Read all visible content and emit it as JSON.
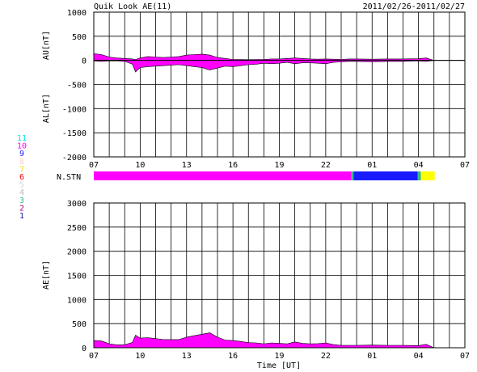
{
  "header": {
    "title": "Quik Look AE(11)",
    "date_range": "2011/02/26-2011/02/27"
  },
  "legend": {
    "items": [
      {
        "label": "11",
        "color": "#00e5e5"
      },
      {
        "label": "10",
        "color": "#ff00ff"
      },
      {
        "label": "9",
        "color": "#1a1aff"
      },
      {
        "label": "8",
        "color": "#ffd0d0"
      },
      {
        "label": "7",
        "color": "#e6e600"
      },
      {
        "label": "6",
        "color": "#ff0000"
      },
      {
        "label": "5",
        "color": "#d8d8d8"
      },
      {
        "label": "4",
        "color": "#bbbbbb"
      },
      {
        "label": "3",
        "color": "#33bb88"
      },
      {
        "label": "2",
        "color": "#b0007f"
      },
      {
        "label": "1",
        "color": "#1a1a99"
      }
    ]
  },
  "chart_data": [
    {
      "type": "area",
      "ylabel_upper": "AU[nT]",
      "ylabel_lower": "AL[nT]",
      "ylim": [
        -2000,
        1000
      ],
      "yticks": [
        "1000",
        "500",
        "0",
        "-500",
        "-1000",
        "-1500",
        "-2000"
      ],
      "xticks": [
        "07",
        "10",
        "13",
        "16",
        "19",
        "22",
        "01",
        "04",
        "07"
      ],
      "grid": true,
      "au": {
        "x": [
          7.0,
          7.5,
          8.0,
          8.5,
          9.0,
          9.5,
          9.7,
          10.0,
          10.5,
          11.0,
          11.5,
          12.0,
          12.5,
          13.0,
          13.5,
          14.0,
          14.5,
          15.0,
          15.5,
          16.0,
          16.5,
          17.0,
          17.5,
          18.0,
          18.5,
          19.0,
          19.5,
          20.0,
          20.5,
          21.0,
          21.5,
          22.0,
          22.5,
          23.0,
          23.5,
          24.0,
          25.0,
          26.0,
          27.0,
          28.0,
          28.5,
          29.0
        ],
        "y": [
          140,
          120,
          70,
          50,
          40,
          30,
          20,
          50,
          80,
          70,
          60,
          70,
          80,
          110,
          120,
          130,
          110,
          60,
          40,
          20,
          20,
          15,
          20,
          20,
          30,
          30,
          40,
          50,
          40,
          30,
          25,
          30,
          25,
          20,
          30,
          30,
          25,
          30,
          30,
          35,
          50,
          0
        ]
      },
      "al": {
        "x": [
          7.0,
          7.5,
          8.0,
          8.5,
          9.0,
          9.5,
          9.7,
          10.0,
          10.5,
          11.0,
          11.5,
          12.0,
          12.5,
          13.0,
          13.5,
          14.0,
          14.5,
          15.0,
          15.5,
          16.0,
          16.5,
          17.0,
          17.5,
          18.0,
          18.5,
          19.0,
          19.5,
          20.0,
          20.5,
          21.0,
          21.5,
          22.0,
          22.5,
          23.0,
          23.5,
          24.0,
          25.0,
          26.0,
          27.0,
          28.0,
          28.5,
          29.0
        ],
        "y": [
          -10,
          -20,
          -10,
          -10,
          -20,
          -80,
          -240,
          -150,
          -130,
          -120,
          -110,
          -100,
          -90,
          -110,
          -130,
          -150,
          -200,
          -160,
          -120,
          -130,
          -110,
          -90,
          -80,
          -60,
          -70,
          -60,
          -40,
          -70,
          -50,
          -50,
          -60,
          -70,
          -40,
          -30,
          -20,
          -20,
          -30,
          -20,
          -20,
          -10,
          -20,
          0
        ]
      }
    },
    {
      "type": "bar",
      "label": "N.STN",
      "segments": [
        {
          "start": 7.0,
          "end": 23.65,
          "color": "#ff00ff"
        },
        {
          "start": 23.65,
          "end": 23.8,
          "color": "#33bb88"
        },
        {
          "start": 23.8,
          "end": 27.95,
          "color": "#1a1aff"
        },
        {
          "start": 27.95,
          "end": 28.15,
          "color": "#33bb88"
        },
        {
          "start": 28.15,
          "end": 29.05,
          "color": "#ffff00"
        }
      ]
    },
    {
      "type": "area",
      "ylabel": "AE[nT]",
      "xlabel": "Time [UT]",
      "ylim": [
        0,
        3000
      ],
      "yticks": [
        "3000",
        "2500",
        "2000",
        "1500",
        "1000",
        "500",
        "0"
      ],
      "xticks": [
        "07",
        "10",
        "13",
        "16",
        "19",
        "22",
        "01",
        "04",
        "07"
      ],
      "grid": true,
      "ae": {
        "x": [
          7.0,
          7.5,
          8.0,
          8.5,
          9.0,
          9.5,
          9.7,
          10.0,
          10.5,
          11.0,
          11.5,
          12.0,
          12.5,
          13.0,
          13.5,
          14.0,
          14.5,
          15.0,
          15.5,
          16.0,
          16.5,
          17.0,
          17.5,
          18.0,
          18.5,
          19.0,
          19.5,
          20.0,
          20.5,
          21.0,
          21.5,
          22.0,
          22.5,
          23.0,
          23.5,
          24.0,
          25.0,
          26.0,
          27.0,
          28.0,
          28.5,
          29.0
        ],
        "y": [
          150,
          140,
          80,
          60,
          60,
          110,
          260,
          200,
          210,
          190,
          170,
          170,
          170,
          220,
          250,
          280,
          310,
          220,
          160,
          150,
          130,
          105,
          100,
          80,
          100,
          90,
          80,
          120,
          90,
          80,
          85,
          100,
          65,
          50,
          50,
          50,
          55,
          50,
          50,
          45,
          70,
          0
        ]
      }
    }
  ]
}
